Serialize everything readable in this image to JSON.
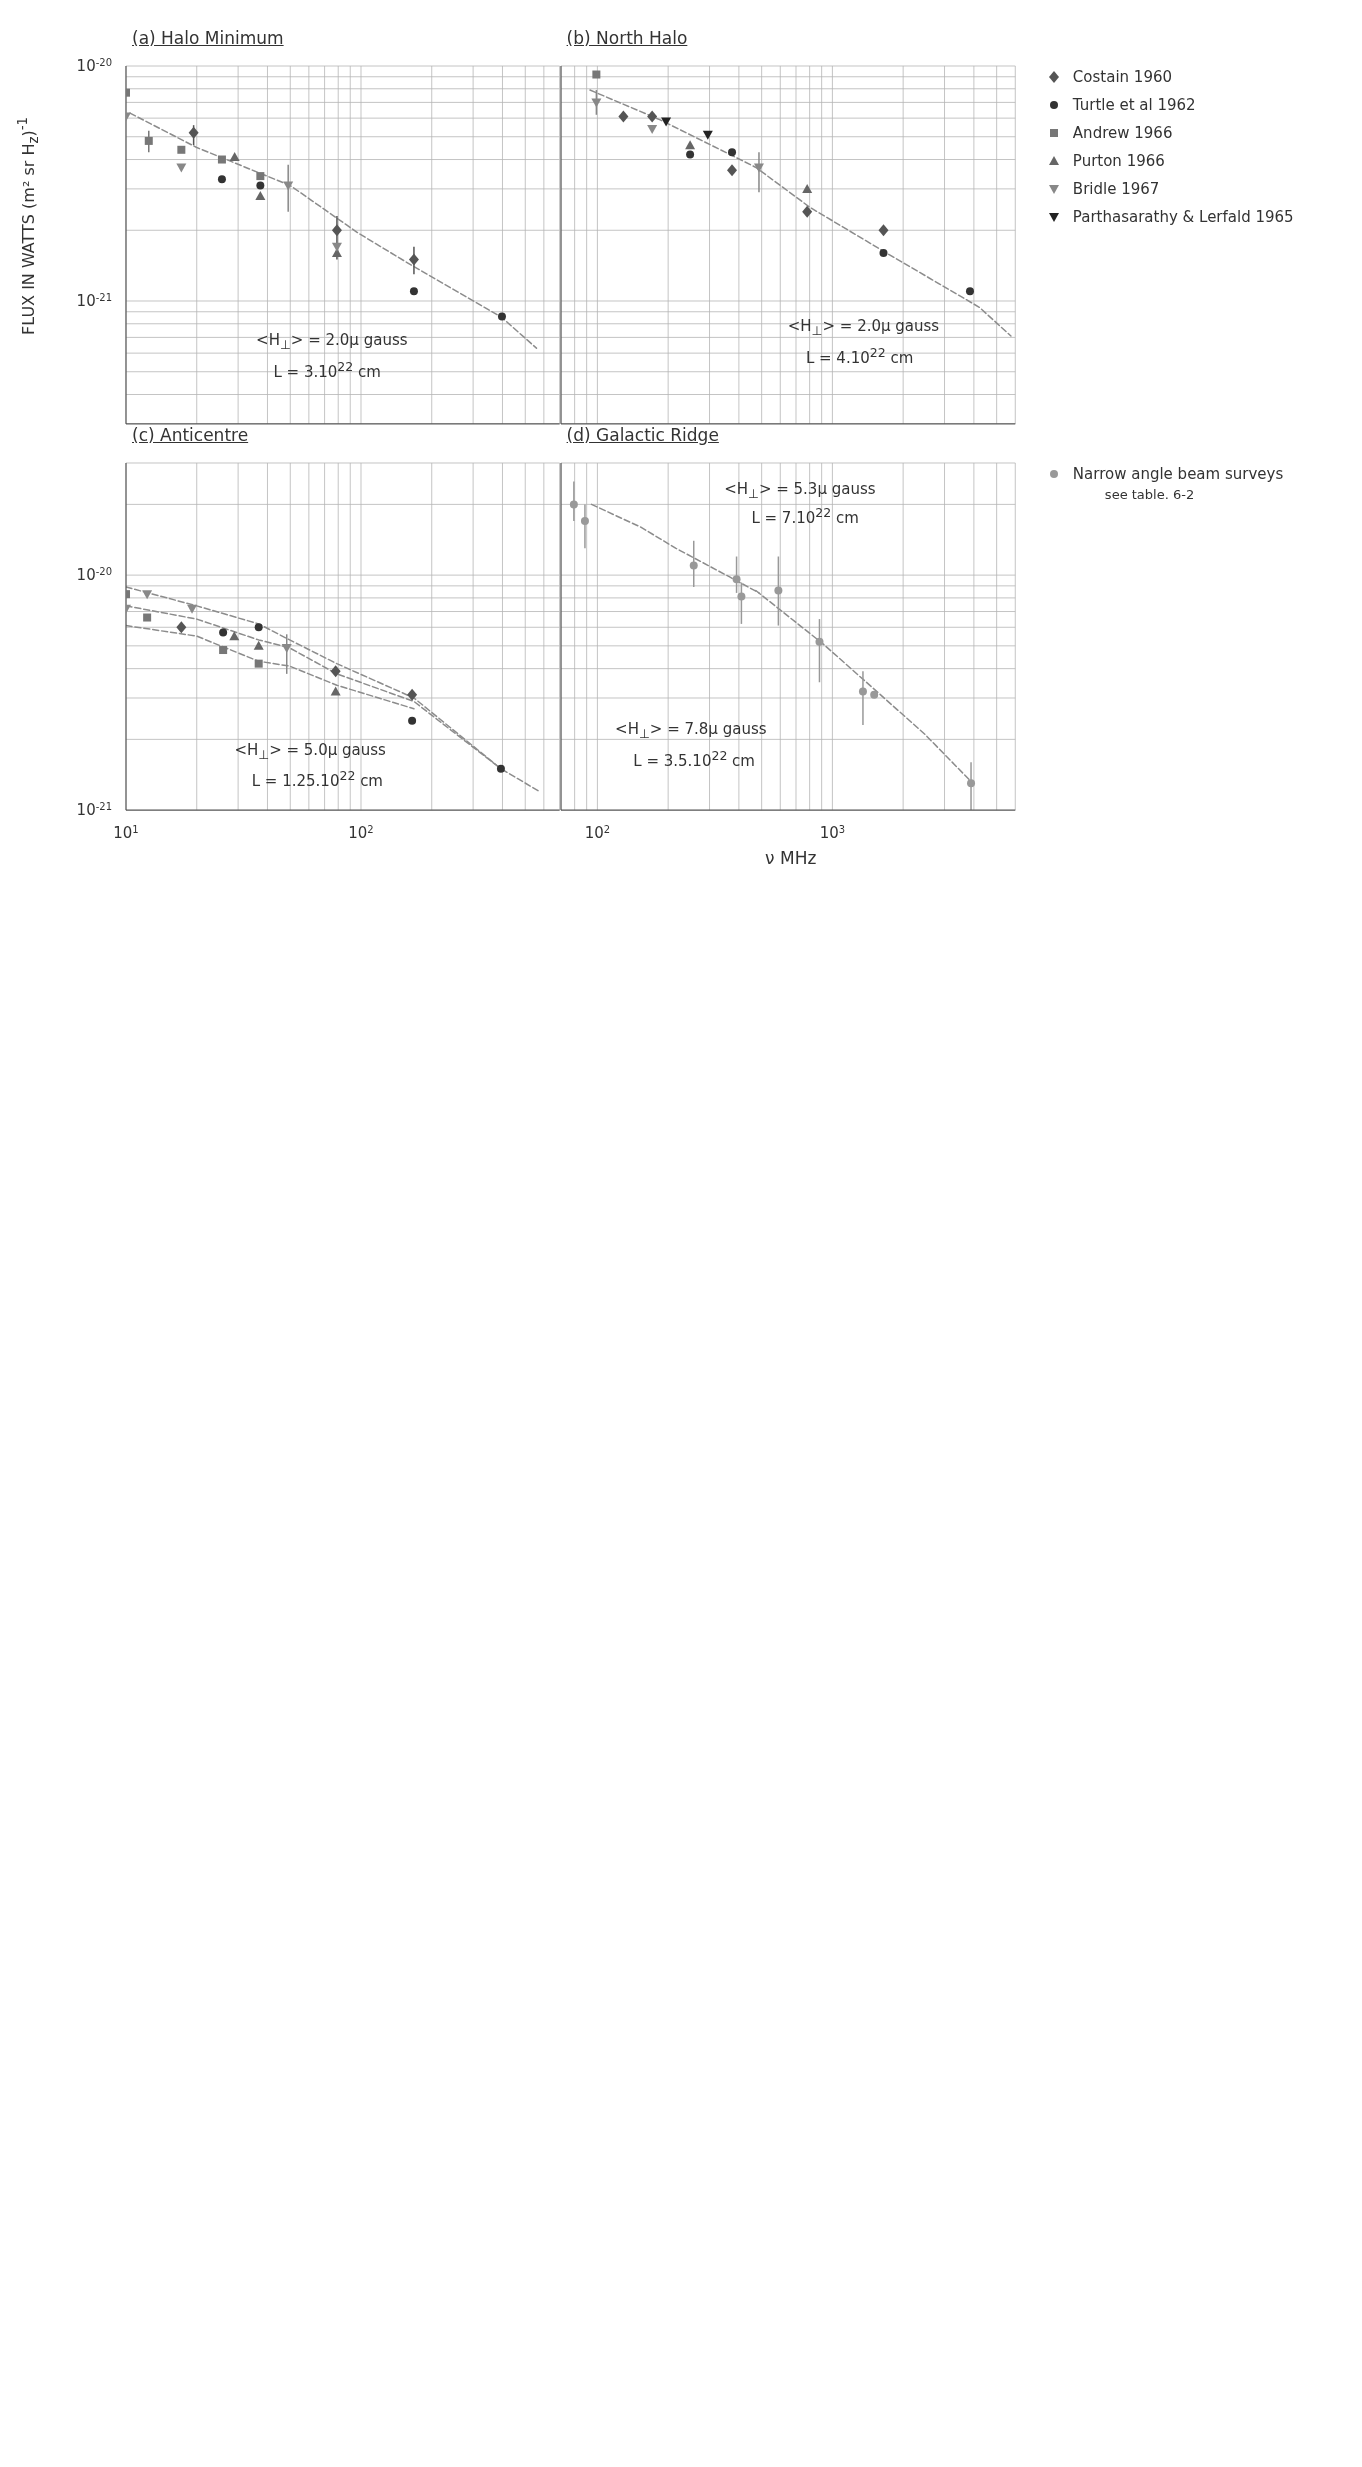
{
  "chart_data": [
    {
      "type": "scatter",
      "title": "(a) Halo Minimum",
      "ylabel": "FLUX IN WATTS  (m² sr H$_{z}$)$^{-1}$",
      "grid": true,
      "tick_labels": "y",
      "xlim": [
        10,
        700
      ],
      "ylim": [
        3e-22,
        1e-20
      ],
      "log": "xy",
      "xticks": [
        {
          "value": 10,
          "label": null
        },
        {
          "value": 20,
          "label": null
        },
        {
          "value": 30,
          "label": null
        },
        {
          "value": 40,
          "label": null
        },
        {
          "value": 50,
          "label": null
        },
        {
          "value": 60,
          "label": null
        },
        {
          "value": 70,
          "label": null
        },
        {
          "value": 80,
          "label": null
        },
        {
          "value": 90,
          "label": null
        },
        {
          "value": 100,
          "label": null
        },
        {
          "value": 200,
          "label": null
        },
        {
          "value": 300,
          "label": null
        },
        {
          "value": 400,
          "label": null
        },
        {
          "value": 500,
          "label": null
        },
        {
          "value": 600,
          "label": null
        },
        {
          "value": 700,
          "label": null
        }
      ],
      "yticks": [
        {
          "value": 3e-22,
          "label": null
        },
        {
          "value": 4e-22,
          "label": null
        },
        {
          "value": 5e-22,
          "label": null
        },
        {
          "value": 6e-22,
          "label": null
        },
        {
          "value": 7e-22,
          "label": null
        },
        {
          "value": 8e-22,
          "label": null
        },
        {
          "value": 9e-22,
          "label": null
        },
        {
          "value": 1e-21,
          "label": "10$^{-21}$"
        },
        {
          "value": 2e-21,
          "label": null
        },
        {
          "value": 3e-21,
          "label": null
        },
        {
          "value": 4e-21,
          "label": null
        },
        {
          "value": 5e-21,
          "label": null
        },
        {
          "value": 6e-21,
          "label": null
        },
        {
          "value": 7e-21,
          "label": null
        },
        {
          "value": 8e-21,
          "label": null
        },
        {
          "value": 9e-21,
          "label": null
        },
        {
          "value": 1e-20,
          "label": "10$^{-20}$"
        }
      ],
      "annotations": [
        "<H$_{⊥}$> = 2.0μ gauss",
        "L = 3.10$^{22}$ cm"
      ],
      "series": [
        {
          "type": "line",
          "color": "#8c8c8c",
          "line_style": "dashed",
          "marker": "none",
          "x": [
            10.4,
            20,
            50,
            97,
            153,
            398,
            558
          ],
          "values": [
            6.3e-21,
            4.5e-21,
            3.1e-21,
            1.95e-21,
            1.48e-21,
            8.5e-22,
            6.3e-22
          ]
        },
        {
          "type": "scatter",
          "color": "#555555",
          "marker": "diamond",
          "x": [
            19.4,
            79,
            168
          ],
          "values": [
            5.2e-21,
            2e-21,
            1.5e-21
          ],
          "errors": [
            [
              4.6e-21,
              5.6e-21
            ],
            [
              1.5e-21,
              2.3e-21
            ],
            [
              1.3e-21,
              1.7e-21
            ]
          ]
        },
        {
          "type": "scatter",
          "color": "#333333",
          "marker": "circle",
          "x": [
            25.6,
            37.3,
            168,
            398
          ],
          "values": [
            3.3e-21,
            3.1e-21,
            1.1e-21,
            8.6e-22
          ]
        },
        {
          "type": "scatter",
          "color": "#777777",
          "marker": "square",
          "x": [
            10,
            12.5,
            17.2,
            25.6,
            37.3
          ],
          "values": [
            7.7e-21,
            4.8e-21,
            4.4e-21,
            4e-21,
            3.4e-21
          ],
          "errors": [
            null,
            [
              4.3e-21,
              5.3e-21
            ],
            null,
            null,
            null
          ]
        },
        {
          "type": "scatter",
          "color": "#666666",
          "marker": "triangle",
          "x": [
            29,
            37.3,
            79
          ],
          "values": [
            4.1e-21,
            2.8e-21,
            1.6e-21
          ]
        },
        {
          "type": "scatter",
          "color": "#888888",
          "marker": "triangle-down",
          "x": [
            10,
            17.2,
            49,
            79
          ],
          "values": [
            6.1e-21,
            3.7e-21,
            3.1e-21,
            1.7e-21
          ],
          "errors": [
            null,
            null,
            [
              2.4e-21,
              3.8e-21
            ],
            null
          ]
        }
      ]
    },
    {
      "type": "scatter",
      "title": "(b) North Halo",
      "grid": true,
      "tick_labels": false,
      "legend": "right",
      "xlim": [
        70,
        6000
      ],
      "ylim": [
        3e-22,
        1e-20
      ],
      "log": "xy",
      "xticks": [
        {
          "value": 70,
          "label": null
        },
        {
          "value": 80,
          "label": null
        },
        {
          "value": 90,
          "label": null
        },
        {
          "value": 100,
          "label": null
        },
        {
          "value": 200,
          "label": null
        },
        {
          "value": 300,
          "label": null
        },
        {
          "value": 400,
          "label": null
        },
        {
          "value": 500,
          "label": null
        },
        {
          "value": 600,
          "label": null
        },
        {
          "value": 700,
          "label": null
        },
        {
          "value": 800,
          "label": null
        },
        {
          "value": 900,
          "label": null
        },
        {
          "value": 1000,
          "label": null
        },
        {
          "value": 2000,
          "label": null
        },
        {
          "value": 3000,
          "label": null
        },
        {
          "value": 4000,
          "label": null
        },
        {
          "value": 5000,
          "label": null
        },
        {
          "value": 6000,
          "label": null
        }
      ],
      "yticks": [
        {
          "value": 3e-22,
          "label": null
        },
        {
          "value": 4e-22,
          "label": null
        },
        {
          "value": 5e-22,
          "label": null
        },
        {
          "value": 6e-22,
          "label": null
        },
        {
          "value": 7e-22,
          "label": null
        },
        {
          "value": 8e-22,
          "label": null
        },
        {
          "value": 9e-22,
          "label": null
        },
        {
          "value": 1e-21,
          "label": null
        },
        {
          "value": 2e-21,
          "label": null
        },
        {
          "value": 3e-21,
          "label": null
        },
        {
          "value": 4e-21,
          "label": null
        },
        {
          "value": 5e-21,
          "label": null
        },
        {
          "value": 6e-21,
          "label": null
        },
        {
          "value": 7e-21,
          "label": null
        },
        {
          "value": 8e-21,
          "label": null
        },
        {
          "value": 9e-21,
          "label": null
        },
        {
          "value": 1e-20,
          "label": null
        }
      ],
      "annotations": [
        "<H$_{⊥}$> = 2.0μ gauss",
        "L = 4.10$^{22}$ cm"
      ],
      "series": [
        {
          "type": "line",
          "color": "#8c8c8c",
          "line_style": "dashed",
          "marker": "none",
          "x": [
            93,
            185,
            473,
            804,
            1700,
            4220,
            5750
          ],
          "values": [
            7.9e-21,
            5.9e-21,
            3.7e-21,
            2.5e-21,
            1.6e-21,
            9.4e-22,
            7.1e-22
          ]
        },
        {
          "type": "scatter",
          "name": "Costain 1960",
          "color": "#555555",
          "marker": "diamond",
          "x": [
            129,
            171,
            374,
            781,
            1650
          ],
          "values": [
            6.1e-21,
            6.1e-21,
            3.6e-21,
            2.4e-21,
            2e-21
          ]
        },
        {
          "type": "scatter",
          "name": "Turtle et al 1962",
          "color": "#333333",
          "marker": "circle",
          "x": [
            248,
            374,
            1650,
            3850
          ],
          "values": [
            4.2e-21,
            4.3e-21,
            1.6e-21,
            1.1e-21
          ]
        },
        {
          "type": "scatter",
          "name": "Andrew 1966",
          "color": "#777777",
          "marker": "square",
          "x": [
            99
          ],
          "values": [
            9.2e-21
          ]
        },
        {
          "type": "scatter",
          "name": "Purton 1966",
          "color": "#666666",
          "marker": "triangle",
          "x": [
            248,
            781
          ],
          "values": [
            4.6e-21,
            3e-21
          ]
        },
        {
          "type": "scatter",
          "name": "Bridle 1967",
          "color": "#888888",
          "marker": "triangle-down",
          "x": [
            99,
            171,
            487
          ],
          "values": [
            7e-21,
            5.4e-21,
            3.7e-21
          ],
          "errors": [
            [
              6.2e-21,
              7.9e-21
            ],
            null,
            [
              2.9e-21,
              4.3e-21
            ]
          ]
        },
        {
          "type": "scatter",
          "name": "Parthasarathy & Lerfald 1965",
          "color": "#222222",
          "marker": "triangle-down",
          "x": [
            196,
            295
          ],
          "values": [
            5.8e-21,
            5.1e-21
          ]
        }
      ]
    },
    {
      "type": "scatter",
      "title": "(c) Anticentre",
      "grid": true,
      "xlim": [
        10,
        700
      ],
      "ylim": [
        1e-21,
        3e-20
      ],
      "log": "xy",
      "xticks": [
        {
          "value": 10,
          "label": "10$^{1}$"
        },
        {
          "value": 20,
          "label": null
        },
        {
          "value": 30,
          "label": null
        },
        {
          "value": 40,
          "label": null
        },
        {
          "value": 50,
          "label": null
        },
        {
          "value": 60,
          "label": null
        },
        {
          "value": 70,
          "label": null
        },
        {
          "value": 80,
          "label": null
        },
        {
          "value": 90,
          "label": null
        },
        {
          "value": 100,
          "label": "10$^{2}$"
        },
        {
          "value": 200,
          "label": null
        },
        {
          "value": 300,
          "label": null
        },
        {
          "value": 400,
          "label": null
        },
        {
          "value": 500,
          "label": null
        },
        {
          "value": 600,
          "label": null
        },
        {
          "value": 700,
          "label": null
        }
      ],
      "yticks": [
        {
          "value": 1e-21,
          "label": "10$^{-21}$"
        },
        {
          "value": 2e-21,
          "label": null
        },
        {
          "value": 3e-21,
          "label": null
        },
        {
          "value": 4e-21,
          "label": null
        },
        {
          "value": 5e-21,
          "label": null
        },
        {
          "value": 6e-21,
          "label": null
        },
        {
          "value": 7e-21,
          "label": null
        },
        {
          "value": 8e-21,
          "label": null
        },
        {
          "value": 9e-21,
          "label": null
        },
        {
          "value": 1e-20,
          "label": "10$^{-20}$"
        },
        {
          "value": 2e-20,
          "label": null
        },
        {
          "value": 3e-20,
          "label": null
        }
      ],
      "annotations": [
        "<H$_{⊥}$> = 5.0μ gauss",
        "L = 1.25.10$^{22}$ cm"
      ],
      "series": [
        {
          "type": "line",
          "color": "#8c8c8c",
          "line_style": "dashed",
          "marker": "none",
          "x": [
            10,
            20,
            36.7,
            49.7,
            78.9,
            168,
            394,
            575
          ],
          "values": [
            8.9e-21,
            7.4e-21,
            6.2e-21,
            5.3e-21,
            4.2e-21,
            3e-21,
            1.5e-21,
            1.2e-21
          ]
        },
        {
          "type": "line",
          "color": "#8c8c8c",
          "line_style": "dashed",
          "marker": "none",
          "x": [
            10,
            20,
            36.7,
            49.7,
            78.9,
            168,
            394
          ],
          "values": [
            7.4e-21,
            6.5e-21,
            5.3e-21,
            4.9e-21,
            3.8e-21,
            2.9e-21,
            1.5e-21
          ]
        },
        {
          "type": "line",
          "color": "#8c8c8c",
          "line_style": "dashed",
          "marker": "none",
          "x": [
            10,
            20,
            36.7,
            49.7,
            78.9,
            168
          ],
          "values": [
            6.1e-21,
            5.5e-21,
            4.3e-21,
            4.1e-21,
            3.4e-21,
            2.7e-21
          ]
        },
        {
          "type": "scatter",
          "color": "#777777",
          "marker": "square",
          "x": [
            10,
            12.3,
            25.9,
            36.7
          ],
          "values": [
            8.3e-21,
            6.6e-21,
            4.8e-21,
            4.2e-21
          ]
        },
        {
          "type": "scatter",
          "color": "#888888",
          "marker": "triangle-down",
          "x": [
            10,
            12.3,
            19.1,
            48.3
          ],
          "values": [
            7.2e-21,
            8.3e-21,
            7.2e-21,
            4.9e-21
          ],
          "errors": [
            null,
            null,
            null,
            [
              3.8e-21,
              5.6e-21
            ]
          ]
        },
        {
          "type": "scatter",
          "color": "#555555",
          "marker": "diamond",
          "x": [
            17.2,
            78,
            165
          ],
          "values": [
            6e-21,
            3.9e-21,
            3.1e-21
          ]
        },
        {
          "type": "scatter",
          "color": "#333333",
          "marker": "circle",
          "x": [
            25.9,
            36.7,
            165,
            394
          ],
          "values": [
            5.7e-21,
            6e-21,
            2.4e-21,
            1.5e-21
          ]
        },
        {
          "type": "scatter",
          "color": "#666666",
          "marker": "triangle",
          "x": [
            28.9,
            36.7,
            78
          ],
          "values": [
            5.5e-21,
            5e-21,
            3.2e-21
          ]
        }
      ]
    },
    {
      "type": "scatter",
      "title": "(d) Galactic Ridge",
      "xlabel": "ν MHz",
      "grid": true,
      "tick_labels": "x",
      "legend": "right",
      "xlim": [
        70,
        6000
      ],
      "ylim": [
        1e-21,
        3e-20
      ],
      "log": "xy",
      "xticks": [
        {
          "value": 70,
          "label": null
        },
        {
          "value": 80,
          "label": null
        },
        {
          "value": 90,
          "label": null
        },
        {
          "value": 100,
          "label": "10$^{2}$"
        },
        {
          "value": 200,
          "label": null
        },
        {
          "value": 300,
          "label": null
        },
        {
          "value": 400,
          "label": null
        },
        {
          "value": 500,
          "label": null
        },
        {
          "value": 600,
          "label": null
        },
        {
          "value": 700,
          "label": null
        },
        {
          "value": 800,
          "label": null
        },
        {
          "value": 900,
          "label": null
        },
        {
          "value": 1000,
          "label": "10$^{3}$"
        },
        {
          "value": 2000,
          "label": null
        },
        {
          "value": 3000,
          "label": null
        },
        {
          "value": 4000,
          "label": null
        },
        {
          "value": 5000,
          "label": null
        },
        {
          "value": 6000,
          "label": null
        }
      ],
      "yticks": [
        {
          "value": 1e-21,
          "label": null
        },
        {
          "value": 2e-21,
          "label": null
        },
        {
          "value": 3e-21,
          "label": null
        },
        {
          "value": 4e-21,
          "label": null
        },
        {
          "value": 5e-21,
          "label": null
        },
        {
          "value": 6e-21,
          "label": null
        },
        {
          "value": 7e-21,
          "label": null
        },
        {
          "value": 8e-21,
          "label": null
        },
        {
          "value": 9e-21,
          "label": null
        },
        {
          "value": 1e-20,
          "label": null
        },
        {
          "value": 2e-20,
          "label": null
        },
        {
          "value": 3e-20,
          "label": null
        }
      ],
      "annotations": [
        "<H$_{⊥}$> = 5.3μ gauss",
        "L = 7.10$^{22}$ cm",
        "<H$_{⊥}$> = 7.8μ gauss",
        "L = 3.5.10$^{22}$ cm",
        "see table. 6-2"
      ],
      "series": [
        {
          "type": "line",
          "color": "#8c8c8c",
          "line_style": "dashed",
          "marker": "none",
          "x": [
            94.4,
            153,
            216,
            367,
            487
          ],
          "values": [
            2e-20,
            1.6e-20,
            1.3e-20,
            9.8e-21,
            8.4e-21
          ]
        },
        {
          "type": "line",
          "color": "#8c8c8c",
          "line_style": "dashed",
          "marker": "none",
          "x": [
            472,
            912,
            1600,
            2477,
            3960
          ],
          "values": [
            8.6e-21,
            5.1e-21,
            3.1e-21,
            2.1e-21,
            1.3e-21
          ]
        },
        {
          "type": "scatter",
          "name": "Narrow angle beam surveys",
          "color": "#999999",
          "marker": "circle",
          "x": [
            79.4,
            88.5,
            257,
            391,
            410,
            589,
            881,
            1349,
            1506,
            3890
          ],
          "values": [
            2e-20,
            1.7e-20,
            1.1e-20,
            9.6e-21,
            8.1e-21,
            8.6e-21,
            5.2e-21,
            3.2e-21,
            3.1e-21,
            1.3e-21
          ],
          "errors": [
            [
              1.7e-20,
              2.5e-20
            ],
            [
              1.3e-20,
              2e-20
            ],
            [
              8.9e-21,
              1.4e-20
            ],
            [
              8.4e-21,
              1.2e-20
            ],
            [
              6.2e-21,
              9.3e-21
            ],
            [
              6.1e-21,
              1.2e-20
            ],
            [
              3.5e-21,
              6.5e-21
            ],
            [
              2.3e-21,
              3.9e-21
            ],
            null,
            [
              1e-21,
              1.6e-21
            ]
          ]
        }
      ]
    }
  ]
}
